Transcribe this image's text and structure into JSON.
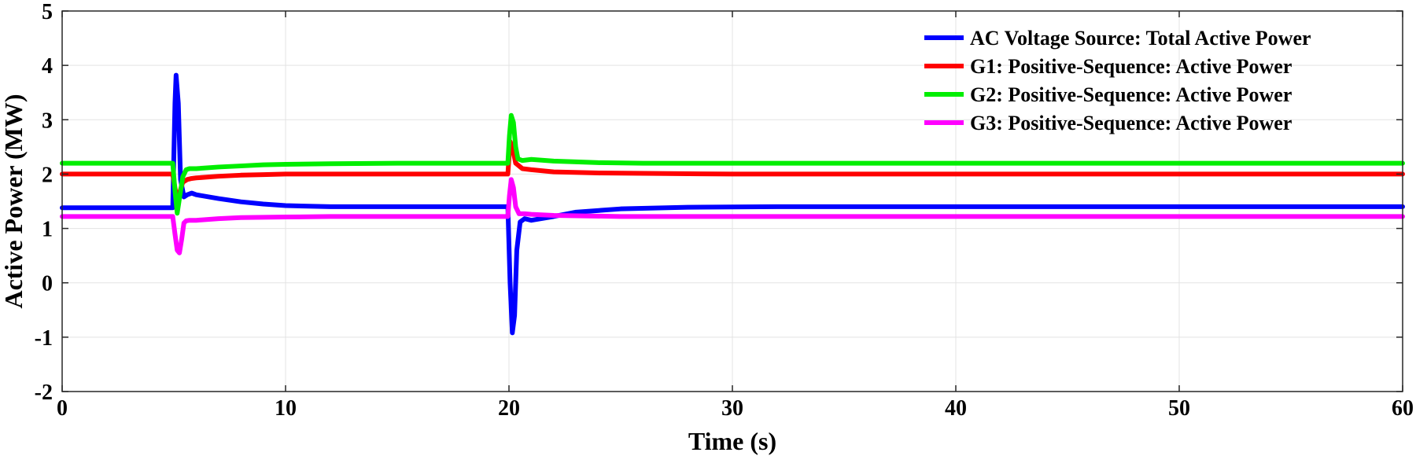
{
  "chart_data": {
    "type": "line",
    "title": "",
    "xlabel": "Time (s)",
    "ylabel": "Active Power (MW)",
    "xlim": [
      0,
      60
    ],
    "ylim": [
      -2,
      5
    ],
    "xticks": [
      0,
      10,
      20,
      30,
      40,
      50,
      60
    ],
    "yticks": [
      -2,
      -1,
      0,
      1,
      2,
      3,
      4,
      5
    ],
    "grid": true,
    "legend_position": "top-right",
    "series": [
      {
        "name": "AC Voltage Source: Total Active Power",
        "color": "#0000ff",
        "x": [
          0,
          4.95,
          5.05,
          5.1,
          5.2,
          5.3,
          5.45,
          5.6,
          5.8,
          6.0,
          7,
          8,
          9,
          10,
          12,
          14,
          16,
          18,
          19.95,
          20.05,
          20.15,
          20.25,
          20.35,
          20.5,
          20.7,
          21.0,
          22,
          23,
          25,
          28,
          32,
          36,
          40,
          45,
          50,
          55,
          60
        ],
        "y": [
          1.38,
          1.38,
          3.3,
          3.82,
          3.3,
          1.9,
          1.58,
          1.62,
          1.65,
          1.62,
          1.55,
          1.49,
          1.45,
          1.42,
          1.4,
          1.4,
          1.4,
          1.4,
          1.4,
          0.0,
          -0.92,
          -0.6,
          0.6,
          1.12,
          1.18,
          1.15,
          1.22,
          1.3,
          1.36,
          1.39,
          1.4,
          1.4,
          1.4,
          1.4,
          1.4,
          1.4,
          1.4
        ]
      },
      {
        "name": "G1: Positive-Sequence: Active Power",
        "color": "#ff0000",
        "x": [
          0,
          4.95,
          5.05,
          5.15,
          5.25,
          5.4,
          5.6,
          5.8,
          6,
          7,
          8,
          9,
          10,
          12,
          15,
          19.95,
          20.05,
          20.15,
          20.3,
          20.6,
          21,
          22,
          24,
          30,
          40,
          50,
          60
        ],
        "y": [
          2.0,
          2.0,
          1.75,
          1.5,
          1.65,
          1.85,
          1.9,
          1.92,
          1.93,
          1.96,
          1.98,
          1.99,
          2.0,
          2.0,
          2.0,
          2.0,
          2.6,
          2.5,
          2.2,
          2.1,
          2.08,
          2.04,
          2.02,
          2.0,
          2.0,
          2.0,
          2.0
        ]
      },
      {
        "name": "G2: Positive-Sequence: Active Power",
        "color": "#00ee00",
        "x": [
          0,
          4.95,
          5.05,
          5.15,
          5.25,
          5.4,
          5.55,
          5.7,
          6,
          7,
          8,
          9,
          10,
          12,
          15,
          19.95,
          20.02,
          20.1,
          20.2,
          20.3,
          20.4,
          20.6,
          21,
          22,
          24,
          26,
          30,
          40,
          50,
          60
        ],
        "y": [
          2.2,
          2.2,
          1.7,
          1.28,
          1.55,
          1.95,
          2.08,
          2.1,
          2.1,
          2.13,
          2.15,
          2.17,
          2.18,
          2.19,
          2.2,
          2.2,
          2.7,
          3.08,
          2.95,
          2.5,
          2.28,
          2.25,
          2.27,
          2.24,
          2.21,
          2.2,
          2.2,
          2.2,
          2.2,
          2.2
        ]
      },
      {
        "name": "G3: Positive-Sequence: Active Power",
        "color": "#ff00ff",
        "x": [
          0,
          4.95,
          5.05,
          5.15,
          5.25,
          5.35,
          5.45,
          5.55,
          5.7,
          6,
          7,
          8,
          10,
          12,
          15,
          19.95,
          20.02,
          20.1,
          20.2,
          20.3,
          20.45,
          20.7,
          21,
          22,
          25,
          30,
          40,
          50,
          60
        ],
        "y": [
          1.22,
          1.22,
          0.9,
          0.6,
          0.55,
          0.8,
          1.1,
          1.14,
          1.15,
          1.15,
          1.18,
          1.2,
          1.21,
          1.22,
          1.22,
          1.22,
          1.6,
          1.9,
          1.75,
          1.4,
          1.27,
          1.27,
          1.26,
          1.24,
          1.22,
          1.22,
          1.22,
          1.22,
          1.22
        ]
      }
    ]
  }
}
